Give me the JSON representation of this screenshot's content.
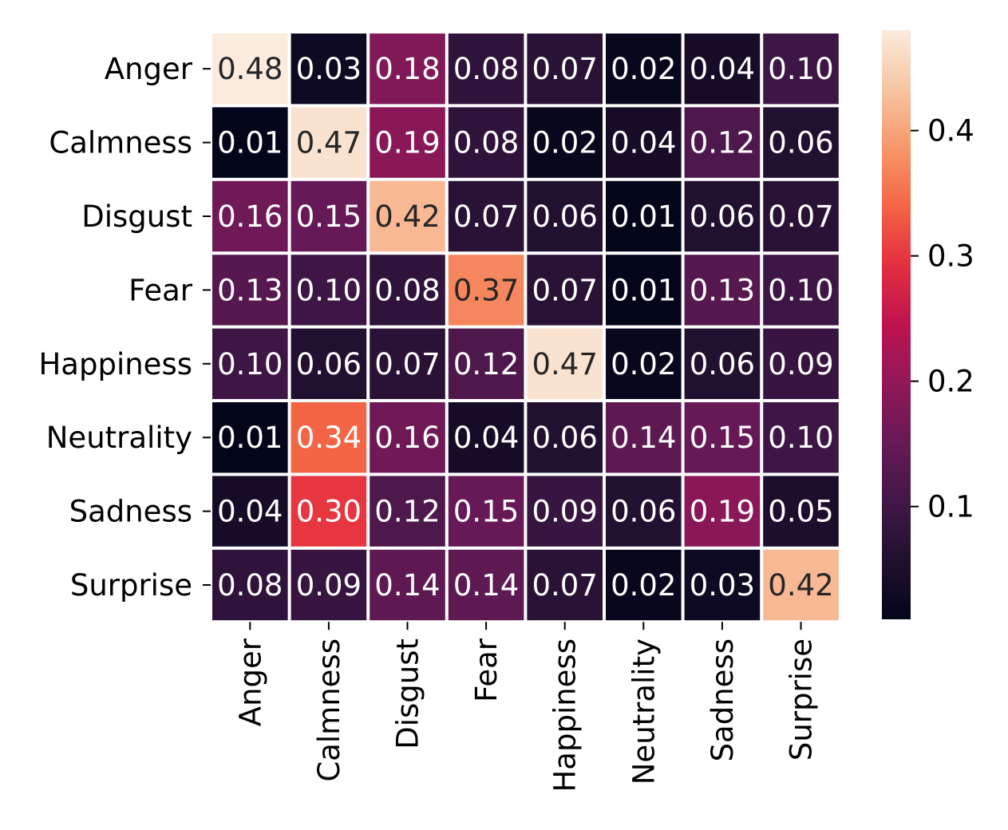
{
  "chart_data": {
    "type": "heatmap",
    "title": "",
    "xlabel": "",
    "ylabel": "",
    "row_labels": [
      "Anger",
      "Calmness",
      "Disgust",
      "Fear",
      "Happiness",
      "Neutrality",
      "Sadness",
      "Surprise"
    ],
    "col_labels": [
      "Anger",
      "Calmness",
      "Disgust",
      "Fear",
      "Happiness",
      "Neutrality",
      "Sadness",
      "Surprise"
    ],
    "values": [
      [
        0.48,
        0.03,
        0.18,
        0.08,
        0.07,
        0.02,
        0.04,
        0.1
      ],
      [
        0.01,
        0.47,
        0.19,
        0.08,
        0.02,
        0.04,
        0.12,
        0.06
      ],
      [
        0.16,
        0.15,
        0.42,
        0.07,
        0.06,
        0.01,
        0.06,
        0.07
      ],
      [
        0.13,
        0.1,
        0.08,
        0.37,
        0.07,
        0.01,
        0.13,
        0.1
      ],
      [
        0.1,
        0.06,
        0.07,
        0.12,
        0.47,
        0.02,
        0.06,
        0.09
      ],
      [
        0.01,
        0.34,
        0.16,
        0.04,
        0.06,
        0.14,
        0.15,
        0.1
      ],
      [
        0.04,
        0.3,
        0.12,
        0.15,
        0.09,
        0.06,
        0.19,
        0.05
      ],
      [
        0.08,
        0.09,
        0.14,
        0.14,
        0.07,
        0.02,
        0.03,
        0.42
      ]
    ],
    "annotation_format": "0.00",
    "color_range": [
      0.01,
      0.48
    ],
    "colormap": "rocket",
    "colorbar": {
      "ticks": [
        0.1,
        0.2,
        0.3,
        0.4
      ],
      "tick_labels": [
        "0.1",
        "0.2",
        "0.3",
        "0.4"
      ],
      "placement": "right"
    },
    "grid": false,
    "cell_separator_color": "#ffffff",
    "annotation_colors": {
      "on_dark": "#ffffff",
      "on_light": "#262626"
    }
  }
}
